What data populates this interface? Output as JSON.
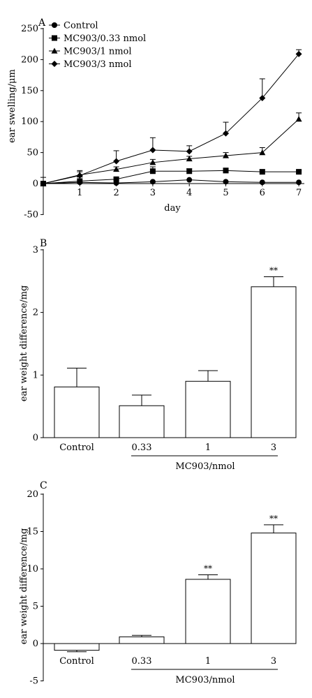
{
  "chart_data": [
    {
      "panel_label": "A",
      "type": "line",
      "xlabel": "day",
      "ylabel": "ear swelling/μm",
      "x": [
        0,
        1,
        2,
        3,
        4,
        5,
        6,
        7
      ],
      "x_tick_labels": [
        "1",
        "2",
        "3",
        "4",
        "5",
        "6",
        "7"
      ],
      "ylim": [
        -50,
        250
      ],
      "y_ticks": [
        -50,
        0,
        50,
        100,
        150,
        200,
        250
      ],
      "legend_position": "top-left",
      "series": [
        {
          "name": "Control",
          "marker": "circle",
          "values": [
            0,
            2,
            1,
            3,
            6,
            3,
            2,
            2
          ],
          "errors": [
            0,
            0,
            0,
            0,
            0,
            0,
            0,
            0
          ]
        },
        {
          "name": "MC903/0.33 nmol",
          "marker": "square",
          "values": [
            0,
            4,
            7,
            20,
            20,
            21,
            19,
            19
          ],
          "errors": [
            0,
            0,
            3,
            7,
            4,
            4,
            3,
            2
          ]
        },
        {
          "name": "MC903/1 nmol",
          "marker": "triangle",
          "values": [
            0,
            14,
            23,
            34,
            40,
            45,
            50,
            104
          ],
          "errors": [
            10,
            5,
            4,
            5,
            4,
            5,
            8,
            10
          ]
        },
        {
          "name": "MC903/3 nmol",
          "marker": "diamond",
          "values": [
            0,
            13,
            36,
            54,
            52,
            81,
            138,
            209
          ],
          "errors": [
            0,
            8,
            17,
            20,
            9,
            18,
            31,
            7
          ]
        }
      ]
    },
    {
      "panel_label": "B",
      "type": "bar",
      "ylabel": "ear weight difference/mg",
      "ylim": [
        0,
        3
      ],
      "y_ticks": [
        0,
        1,
        2,
        3
      ],
      "categories": [
        "Control",
        "0.33",
        "1",
        "3"
      ],
      "values": [
        0.81,
        0.51,
        0.9,
        2.41
      ],
      "errors": [
        0.3,
        0.17,
        0.17,
        0.16
      ],
      "annotations": [
        "",
        "",
        "",
        "**"
      ],
      "group_label": "MC903/nmol"
    },
    {
      "panel_label": "C",
      "type": "bar",
      "ylabel": "ear weight difference/mg",
      "ylim": [
        -5,
        20
      ],
      "y_ticks": [
        -5,
        0,
        5,
        10,
        15,
        20
      ],
      "categories": [
        "Control",
        "0.33",
        "1",
        "3"
      ],
      "values": [
        -0.9,
        0.9,
        8.6,
        14.8
      ],
      "errors": [
        0.2,
        0.2,
        0.6,
        1.1
      ],
      "annotations": [
        "",
        "",
        "**",
        "**"
      ],
      "group_label": "MC903/nmol"
    }
  ]
}
